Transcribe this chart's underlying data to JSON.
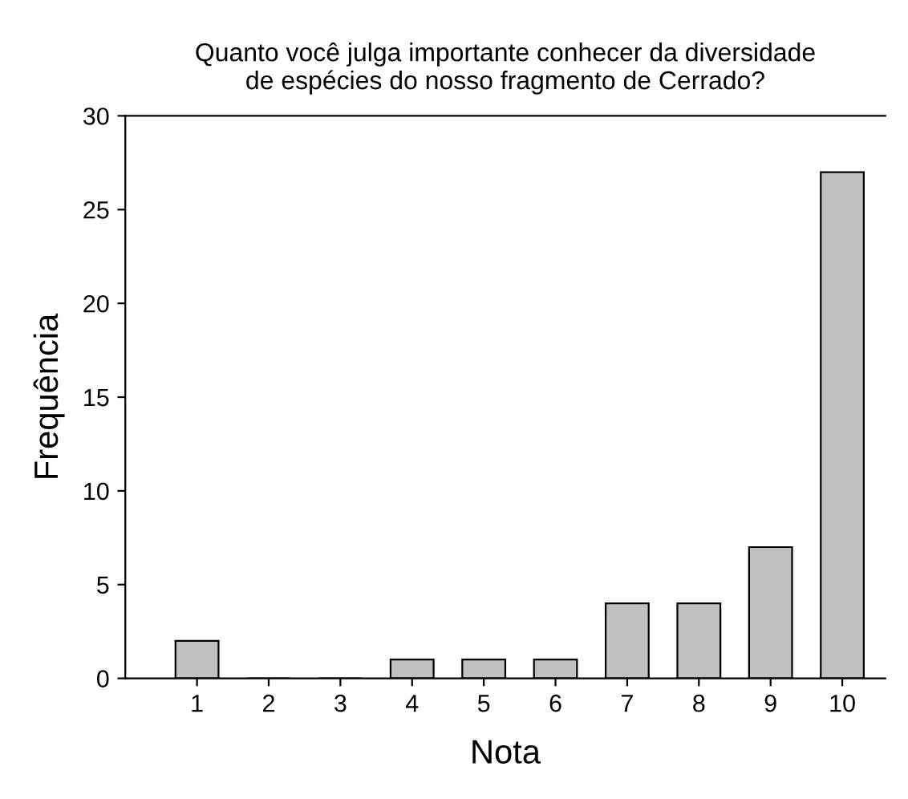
{
  "chart_data": {
    "type": "bar",
    "title": "Quanto você julga importante conhecer da diversidade\nde espécies do nosso fragmento de Cerrado?",
    "xlabel": "Nota",
    "ylabel": "Frequência",
    "categories": [
      "1",
      "2",
      "3",
      "4",
      "5",
      "6",
      "7",
      "8",
      "9",
      "10"
    ],
    "values": [
      2,
      0,
      0,
      1,
      1,
      1,
      4,
      4,
      7,
      27
    ],
    "color": "#c0c0c0",
    "ylim": [
      0,
      30
    ],
    "yticks": [
      0,
      5,
      10,
      15,
      20,
      25,
      30
    ],
    "grid": false,
    "legend": false
  }
}
